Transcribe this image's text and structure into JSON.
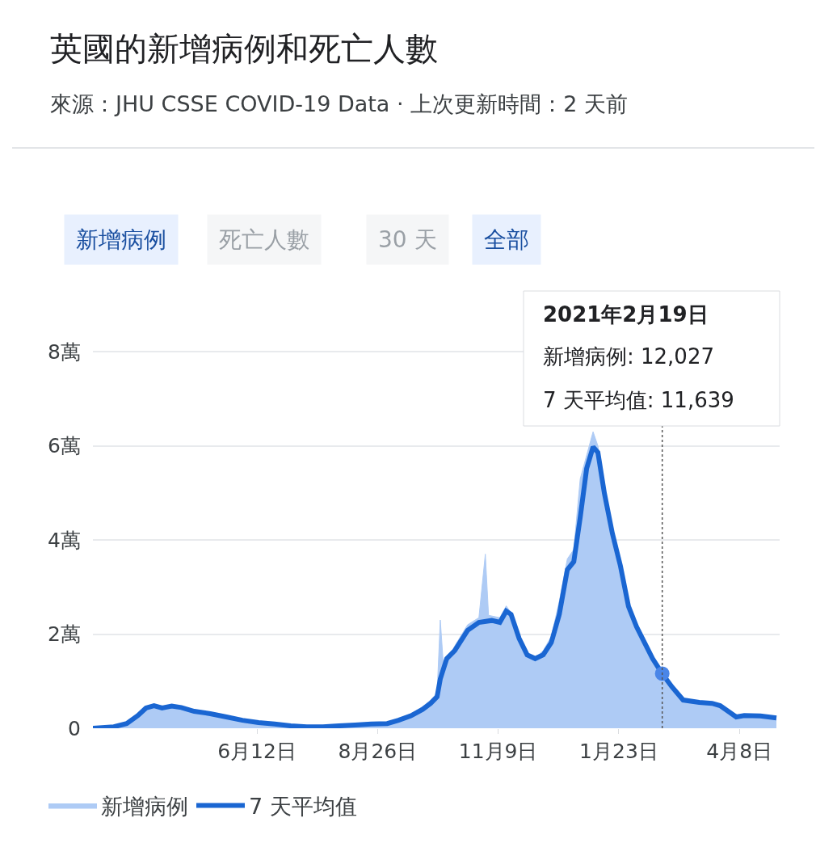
{
  "chart_data": {
    "type": "line",
    "title": "英國的新增病例和死亡人數",
    "subtitle": "來源：JHU CSSE COVID-19 Data · 上次更新時間：2 天前",
    "annotations": [
      "新增病例",
      "死亡人數",
      "30 天",
      "全部",
      "2021年2月19日",
      "新增病例: 12,027",
      "7 天平均值: 11,639"
    ],
    "series": [
      {
        "name": "新增病例",
        "type": "area",
        "color": "#aecbf5",
        "x": [
          "2020-03-02",
          "2020-03-15",
          "2020-03-23",
          "2020-03-30",
          "2020-04-04",
          "2020-04-09",
          "2020-04-14",
          "2020-04-20",
          "2020-04-26",
          "2020-05-04",
          "2020-05-14",
          "2020-05-24",
          "2020-06-03",
          "2020-06-13",
          "2020-06-23",
          "2020-07-03",
          "2020-07-13",
          "2020-07-23",
          "2020-08-02",
          "2020-08-12",
          "2020-08-22",
          "2020-09-01",
          "2020-09-08",
          "2020-09-16",
          "2020-09-23",
          "2020-09-28",
          "2020-10-02",
          "2020-10-04",
          "2020-10-06",
          "2020-10-13",
          "2020-10-21",
          "2020-10-28",
          "2020-11-01",
          "2020-11-03",
          "2020-11-10",
          "2020-11-14",
          "2020-11-17",
          "2020-11-22",
          "2020-11-27",
          "2020-12-02",
          "2020-12-07",
          "2020-12-12",
          "2020-12-17",
          "2020-12-22",
          "2020-12-26",
          "2020-12-30",
          "2021-01-03",
          "2021-01-07",
          "2021-01-10",
          "2021-01-14",
          "2021-01-19",
          "2021-01-24",
          "2021-01-29",
          "2021-02-03",
          "2021-02-08",
          "2021-02-13",
          "2021-02-19",
          "2021-02-25",
          "2021-03-04",
          "2021-03-14",
          "2021-03-22",
          "2021-03-27",
          "2021-04-01",
          "2021-04-06",
          "2021-04-11",
          "2021-04-21",
          "2021-05-01"
        ],
        "values": [
          0,
          0.04,
          0.12,
          0.3,
          0.45,
          0.5,
          0.42,
          0.48,
          0.44,
          0.37,
          0.32,
          0.25,
          0.18,
          0.13,
          0.09,
          0.06,
          0.04,
          0.04,
          0.06,
          0.08,
          0.1,
          0.12,
          0.2,
          0.31,
          0.46,
          0.6,
          0.75,
          2.3,
          1.3,
          1.75,
          2.2,
          2.35,
          3.7,
          2.4,
          2.35,
          2.6,
          2.45,
          1.95,
          1.6,
          1.5,
          1.65,
          1.95,
          2.7,
          3.6,
          3.8,
          5.3,
          5.8,
          6.3,
          6.0,
          5.2,
          4.2,
          3.5,
          2.7,
          2.25,
          1.9,
          1.55,
          1.2,
          0.9,
          0.62,
          0.58,
          0.55,
          0.5,
          0.39,
          0.26,
          0.29,
          0.27,
          0.23
        ]
      },
      {
        "name": "7 天平均值",
        "color": "#1a66d2",
        "x": [
          "2020-03-02",
          "2020-03-15",
          "2020-03-23",
          "2020-03-30",
          "2020-04-04",
          "2020-04-09",
          "2020-04-14",
          "2020-04-20",
          "2020-04-26",
          "2020-05-04",
          "2020-05-14",
          "2020-05-24",
          "2020-06-03",
          "2020-06-13",
          "2020-06-23",
          "2020-07-03",
          "2020-07-13",
          "2020-07-23",
          "2020-08-02",
          "2020-08-12",
          "2020-08-22",
          "2020-09-01",
          "2020-09-08",
          "2020-09-16",
          "2020-09-23",
          "2020-09-28",
          "2020-10-02",
          "2020-10-04",
          "2020-10-08",
          "2020-10-13",
          "2020-10-21",
          "2020-10-28",
          "2020-11-05",
          "2020-11-10",
          "2020-11-14",
          "2020-11-17",
          "2020-11-22",
          "2020-11-27",
          "2020-12-02",
          "2020-12-07",
          "2020-12-12",
          "2020-12-17",
          "2020-12-22",
          "2020-12-26",
          "2020-12-30",
          "2021-01-03",
          "2021-01-07",
          "2021-01-10",
          "2021-01-14",
          "2021-01-19",
          "2021-01-24",
          "2021-01-29",
          "2021-02-03",
          "2021-02-08",
          "2021-02-13",
          "2021-02-19",
          "2021-02-25",
          "2021-03-04",
          "2021-03-14",
          "2021-03-22",
          "2021-03-27",
          "2021-04-01",
          "2021-04-06",
          "2021-04-11",
          "2021-04-21",
          "2021-05-01"
        ],
        "values": [
          0,
          0.03,
          0.1,
          0.27,
          0.43,
          0.48,
          0.43,
          0.47,
          0.44,
          0.36,
          0.31,
          0.24,
          0.17,
          0.12,
          0.09,
          0.05,
          0.03,
          0.03,
          0.05,
          0.07,
          0.09,
          0.1,
          0.17,
          0.27,
          0.4,
          0.53,
          0.67,
          1.05,
          1.48,
          1.65,
          2.08,
          2.25,
          2.29,
          2.25,
          2.49,
          2.42,
          1.91,
          1.56,
          1.48,
          1.56,
          1.82,
          2.42,
          3.37,
          3.54,
          4.48,
          5.52,
          5.98,
          5.86,
          5.0,
          4.14,
          3.45,
          2.59,
          2.16,
          1.82,
          1.48,
          1.16,
          0.88,
          0.6,
          0.55,
          0.53,
          0.48,
          0.36,
          0.24,
          0.27,
          0.26,
          0.22
        ]
      },
      {
        "type": "scatter",
        "color": "#4a86e8",
        "x": [
          "2021-02-19"
        ],
        "values": [
          1.16
        ]
      }
    ],
    "xlim": [
      "2020-03-02",
      "2021-05-03"
    ],
    "xticks": [
      {
        "value": "2020-06-12",
        "label": "6月12日"
      },
      {
        "value": "2020-08-26",
        "label": "8月26日"
      },
      {
        "value": "2020-11-09",
        "label": "11月9日"
      },
      {
        "value": "2021-01-23",
        "label": "1月23日"
      },
      {
        "value": "2021-04-08",
        "label": "4月8日"
      }
    ],
    "ylim": [
      0,
      9
    ],
    "yticks": [
      0,
      {
        "value": 2,
        "label": "2萬"
      },
      {
        "value": 4,
        "label": "4萬"
      },
      {
        "value": 6,
        "label": "6萬"
      },
      {
        "value": 8,
        "label": "8萬"
      }
    ],
    "ref_lines": [
      {
        "axis": "x",
        "value": "2021-02-19",
        "color": "#555555",
        "line_style": "dotted"
      }
    ],
    "grid": "y",
    "legend": "bottom left"
  }
}
